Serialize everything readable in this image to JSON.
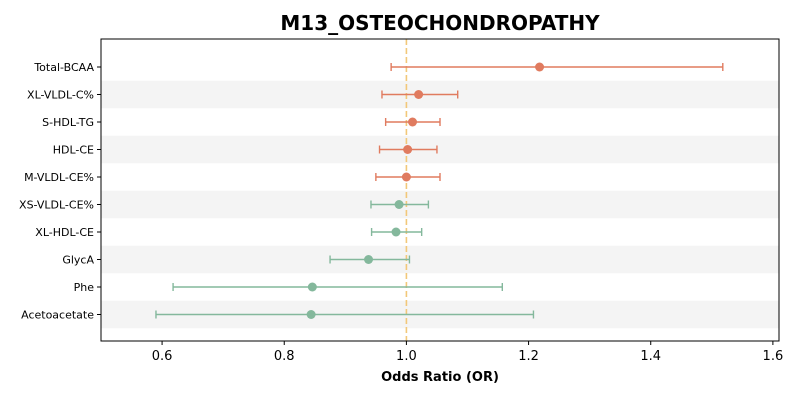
{
  "chart_data": {
    "type": "forest",
    "title": "M13_OSTEOCHONDROPATHY",
    "xlabel": "Odds Ratio (OR)",
    "ylabel": "",
    "xlim": [
      0.5,
      1.61
    ],
    "xticks": [
      "0.6",
      "0.8",
      "1.0",
      "1.2",
      "1.4",
      "1.6"
    ],
    "reference_line": 1.0,
    "grid": false,
    "colors": {
      "risk": "#e07b5f",
      "protective": "#84b89c",
      "reference": "#f2c879",
      "band": "#f4f4f4"
    },
    "rows": [
      {
        "label": "Total-BCAA",
        "or": 1.218,
        "lower": 0.975,
        "upper": 1.518,
        "direction": "risk"
      },
      {
        "label": "XL-VLDL-C%",
        "or": 1.02,
        "lower": 0.96,
        "upper": 1.084,
        "direction": "risk"
      },
      {
        "label": "S-HDL-TG",
        "or": 1.01,
        "lower": 0.966,
        "upper": 1.055,
        "direction": "risk"
      },
      {
        "label": "HDL-CE",
        "or": 1.002,
        "lower": 0.956,
        "upper": 1.05,
        "direction": "risk"
      },
      {
        "label": "M-VLDL-CE%",
        "or": 1.0,
        "lower": 0.95,
        "upper": 1.055,
        "direction": "risk"
      },
      {
        "label": "XS-VLDL-CE%",
        "or": 0.988,
        "lower": 0.942,
        "upper": 1.036,
        "direction": "protective"
      },
      {
        "label": "XL-HDL-CE",
        "or": 0.983,
        "lower": 0.943,
        "upper": 1.025,
        "direction": "protective"
      },
      {
        "label": "GlycA",
        "or": 0.938,
        "lower": 0.875,
        "upper": 1.005,
        "direction": "protective"
      },
      {
        "label": "Phe",
        "or": 0.846,
        "lower": 0.618,
        "upper": 1.157,
        "direction": "protective"
      },
      {
        "label": "Acetoacetate",
        "or": 0.844,
        "lower": 0.59,
        "upper": 1.208,
        "direction": "protective"
      }
    ]
  }
}
